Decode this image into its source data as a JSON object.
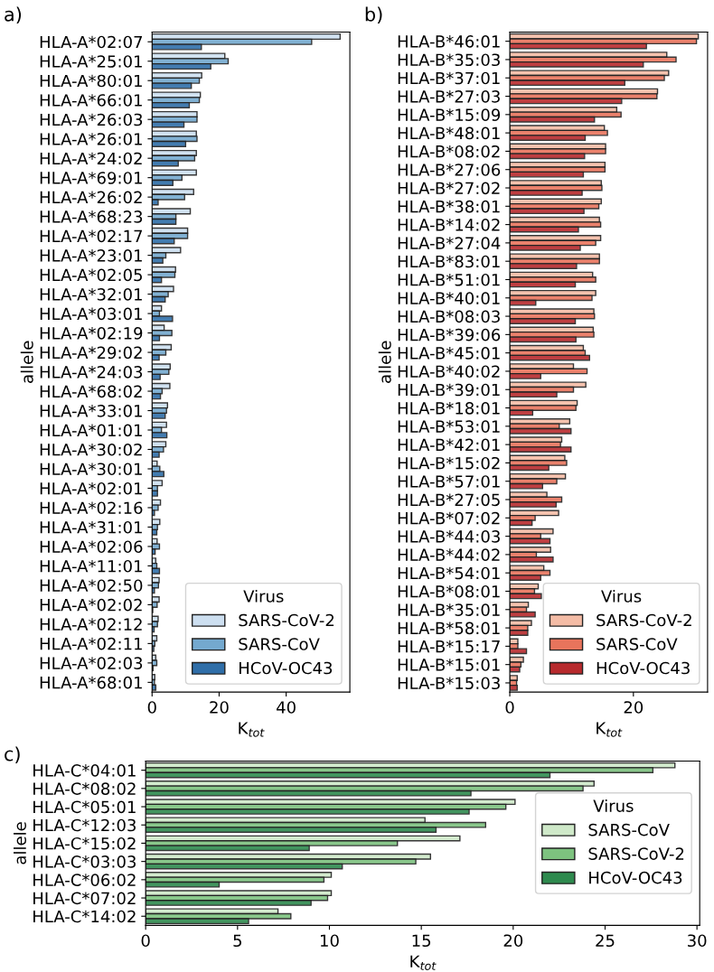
{
  "chart_data": [
    {
      "type": "bar",
      "orientation": "horizontal",
      "annotations": [
        "a)"
      ],
      "xlabel": "K$_{tot}$",
      "ylabel": "allele",
      "legend_title": "Virus",
      "legend": "bottom right",
      "grid": false,
      "xlim": [
        0,
        59
      ],
      "xticks": [
        0,
        20,
        40
      ],
      "categories": [
        "HLA-A*02:07",
        "HLA-A*25:01",
        "HLA-A*80:01",
        "HLA-A*66:01",
        "HLA-A*26:03",
        "HLA-A*26:01",
        "HLA-A*24:02",
        "HLA-A*69:01",
        "HLA-A*26:02",
        "HLA-A*68:23",
        "HLA-A*02:17",
        "HLA-A*23:01",
        "HLA-A*02:05",
        "HLA-A*32:01",
        "HLA-A*03:01",
        "HLA-A*02:19",
        "HLA-A*29:02",
        "HLA-A*24:03",
        "HLA-A*68:02",
        "HLA-A*33:01",
        "HLA-A*01:01",
        "HLA-A*30:02",
        "HLA-A*30:01",
        "HLA-A*02:01",
        "HLA-A*02:16",
        "HLA-A*31:01",
        "HLA-A*02:06",
        "HLA-A*11:01",
        "HLA-A*02:50",
        "HLA-A*02:02",
        "HLA-A*02:12",
        "HLA-A*02:11",
        "HLA-A*02:03",
        "HLA-A*68:01"
      ],
      "series": [
        {
          "name": "SARS-CoV-2",
          "color": "#cddff0",
          "values": [
            56.1,
            21.7,
            14.8,
            14.4,
            13.4,
            13.2,
            13.2,
            13.2,
            12.4,
            11.4,
            10.6,
            8.5,
            7.0,
            6.4,
            2.8,
            3.6,
            5.7,
            5.4,
            5.3,
            4.6,
            4.3,
            4.1,
            1.5,
            3.0,
            2.5,
            2.3,
            1.5,
            1.1,
            2.1,
            2.1,
            1.8,
            1.4,
            1.1,
            0.8
          ]
        },
        {
          "name": "SARS-CoV",
          "color": "#74a9cf",
          "values": [
            47.6,
            22.7,
            14.1,
            14.1,
            13.4,
            13.4,
            12.7,
            8.9,
            9.7,
            7.1,
            10.6,
            4.1,
            6.8,
            4.8,
            2.2,
            5.9,
            4.1,
            5.0,
            3.0,
            4.3,
            2.8,
            3.4,
            2.3,
            1.6,
            1.8,
            1.6,
            2.2,
            1.4,
            1.9,
            1.5,
            1.6,
            0.8,
            1.4,
            0.7
          ]
        },
        {
          "name": "HCoV-OC43",
          "color": "#2f6ea8",
          "values": [
            14.7,
            17.5,
            11.7,
            11.1,
            9.5,
            10.0,
            7.8,
            6.2,
            1.8,
            7.1,
            6.6,
            3.2,
            2.8,
            3.9,
            6.1,
            2.2,
            2.1,
            2.4,
            2.5,
            3.9,
            4.4,
            2.1,
            3.5,
            1.6,
            0.7,
            1.4,
            0.9,
            2.2,
            0.7,
            0.2,
            0.6,
            0.5,
            0.3,
            1.1
          ]
        }
      ]
    },
    {
      "type": "bar",
      "orientation": "horizontal",
      "annotations": [
        "b)"
      ],
      "xlabel": "K$_{tot}$",
      "ylabel": "allele",
      "legend_title": "Virus",
      "legend": "bottom right",
      "grid": false,
      "xlim": [
        0,
        32
      ],
      "xticks": [
        0,
        20
      ],
      "categories": [
        "HLA-B*46:01",
        "HLA-B*35:03",
        "HLA-B*37:01",
        "HLA-B*27:03",
        "HLA-B*15:09",
        "HLA-B*48:01",
        "HLA-B*08:02",
        "HLA-B*27:06",
        "HLA-B*27:02",
        "HLA-B*38:01",
        "HLA-B*14:02",
        "HLA-B*27:04",
        "HLA-B*83:01",
        "HLA-B*51:01",
        "HLA-B*40:01",
        "HLA-B*08:03",
        "HLA-B*39:06",
        "HLA-B*45:01",
        "HLA-B*40:02",
        "HLA-B*39:01",
        "HLA-B*18:01",
        "HLA-B*53:01",
        "HLA-B*42:01",
        "HLA-B*15:02",
        "HLA-B*57:01",
        "HLA-B*27:05",
        "HLA-B*07:02",
        "HLA-B*44:03",
        "HLA-B*44:02",
        "HLA-B*54:01",
        "HLA-B*08:01",
        "HLA-B*35:01",
        "HLA-B*58:01",
        "HLA-B*15:17",
        "HLA-B*15:01",
        "HLA-B*15:03"
      ],
      "series": [
        {
          "name": "SARS-CoV-2",
          "color": "#f4bca6",
          "values": [
            30.5,
            25.4,
            25.7,
            23.9,
            17.3,
            15.3,
            15.5,
            15.4,
            14.8,
            14.8,
            14.5,
            14.7,
            14.5,
            13.4,
            13.9,
            13.6,
            13.5,
            11.9,
            10.3,
            12.3,
            10.9,
            9.7,
            8.4,
            8.9,
            9.0,
            6.0,
            7.9,
            7.0,
            6.6,
            5.5,
            4.6,
            3.0,
            3.5,
            1.3,
            2.2,
            1.2
          ]
        },
        {
          "name": "SARS-CoV",
          "color": "#e8745c",
          "values": [
            30.2,
            26.9,
            25.0,
            23.8,
            18.0,
            15.8,
            15.5,
            15.4,
            14.9,
            14.4,
            14.7,
            13.9,
            14.5,
            13.9,
            13.3,
            13.7,
            13.6,
            12.2,
            12.5,
            10.3,
            10.7,
            8.0,
            8.2,
            9.2,
            7.6,
            8.4,
            4.1,
            5.0,
            4.3,
            6.5,
            4.0,
            2.7,
            2.9,
            1.3,
            1.8,
            1.1
          ]
        },
        {
          "name": "HCoV-OC43",
          "color": "#b72a2d",
          "values": [
            22.1,
            21.6,
            18.6,
            18.1,
            13.7,
            12.2,
            12.1,
            11.9,
            11.7,
            12.0,
            11.1,
            11.4,
            10.8,
            10.6,
            4.2,
            10.6,
            10.7,
            12.9,
            5.0,
            7.6,
            3.7,
            9.9,
            9.9,
            6.3,
            5.3,
            7.5,
            3.6,
            6.5,
            7.0,
            5.0,
            5.1,
            4.1,
            2.9,
            2.7,
            1.6,
            1.2
          ]
        }
      ]
    },
    {
      "type": "bar",
      "orientation": "horizontal",
      "annotations": [
        "c)"
      ],
      "xlabel": "K$_{tot}$",
      "ylabel": "allele",
      "legend_title": "Virus",
      "legend": "right",
      "grid": false,
      "xlim": [
        0,
        30.15
      ],
      "xticks": [
        0,
        5,
        10,
        15,
        20,
        25,
        30
      ],
      "categories": [
        "HLA-C*04:01",
        "HLA-C*08:02",
        "HLA-C*05:01",
        "HLA-C*12:03",
        "HLA-C*15:02",
        "HLA-C*03:03",
        "HLA-C*06:02",
        "HLA-C*07:02",
        "HLA-C*14:02"
      ],
      "series": [
        {
          "name": "SARS-CoV",
          "color": "#cfe9c9",
          "values": [
            28.8,
            24.4,
            20.1,
            15.2,
            17.1,
            15.5,
            10.1,
            10.1,
            7.2
          ]
        },
        {
          "name": "SARS-CoV-2",
          "color": "#7dc27f",
          "values": [
            27.6,
            23.8,
            19.6,
            18.5,
            13.7,
            14.7,
            9.7,
            9.9,
            7.9
          ]
        },
        {
          "name": "HCoV-OC43",
          "color": "#2e8a4e",
          "values": [
            22.0,
            17.7,
            17.6,
            15.8,
            8.9,
            10.7,
            4.0,
            9.0,
            5.6
          ]
        }
      ]
    }
  ]
}
